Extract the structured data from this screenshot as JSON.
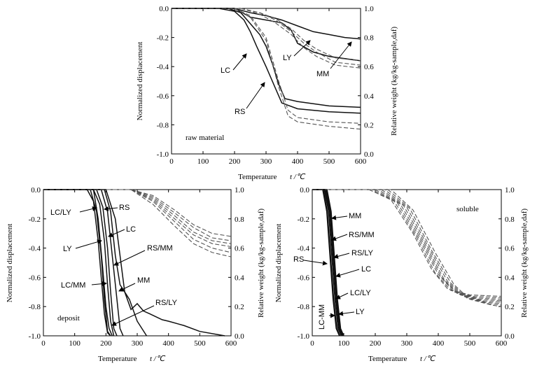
{
  "chart_data": [
    {
      "type": "line",
      "panel_label": "raw material",
      "xlabel": "Temperature",
      "xunit": "t /℃",
      "ylabel_left": "Normalized displacement",
      "ylabel_right": "Relative weight (kg/kg-sample,daf)",
      "xlim": [
        0,
        600
      ],
      "ylim_left": [
        -1.0,
        0.0
      ],
      "ylim_right": [
        0.0,
        1.0
      ],
      "x_ticks": [
        "0",
        "100",
        "200",
        "300",
        "400",
        "500",
        "600"
      ],
      "y_left_ticks": [
        "0.0",
        "-0.2",
        "-0.4",
        "-0.6",
        "-0.8",
        "-1.0"
      ],
      "y_right_ticks": [
        "1.0",
        "0.8",
        "0.6",
        "0.4",
        "0.2",
        "0.0"
      ],
      "series": [
        {
          "name": "LC",
          "style": "solid",
          "x": [
            0,
            150,
            200,
            230,
            250,
            270,
            300,
            330,
            350,
            400,
            500,
            600
          ],
          "y": [
            0,
            0,
            -0.02,
            -0.08,
            -0.16,
            -0.26,
            -0.4,
            -0.55,
            -0.65,
            -0.69,
            -0.71,
            -0.72
          ]
        },
        {
          "name": "RS",
          "style": "solid",
          "x": [
            0,
            180,
            220,
            240,
            260,
            280,
            300,
            320,
            340,
            360,
            400,
            500,
            600
          ],
          "y": [
            0,
            0,
            -0.03,
            -0.08,
            -0.13,
            -0.18,
            -0.26,
            -0.38,
            -0.52,
            -0.62,
            -0.64,
            -0.67,
            -0.68
          ]
        },
        {
          "name": "LY",
          "style": "solid",
          "x": [
            0,
            200,
            250,
            300,
            350,
            380,
            400,
            450,
            500,
            600
          ],
          "y": [
            0,
            0,
            -0.06,
            -0.08,
            -0.1,
            -0.15,
            -0.24,
            -0.3,
            -0.33,
            -0.36
          ]
        },
        {
          "name": "MM",
          "style": "solid",
          "x": [
            0,
            200,
            250,
            300,
            350,
            400,
            450,
            500,
            550,
            600
          ],
          "y": [
            0,
            0,
            -0.03,
            -0.05,
            -0.08,
            -0.12,
            -0.16,
            -0.18,
            -0.2,
            -0.21
          ]
        },
        {
          "name": "",
          "style": "dashed",
          "x": [
            0,
            200,
            250,
            300,
            340,
            370,
            400,
            500,
            600
          ],
          "y": [
            1,
            1,
            0.95,
            0.8,
            0.5,
            0.3,
            0.25,
            0.22,
            0.21
          ]
        },
        {
          "name": "",
          "style": "dashed",
          "x": [
            0,
            200,
            250,
            300,
            340,
            370,
            400,
            500,
            600
          ],
          "y": [
            1,
            1,
            0.94,
            0.78,
            0.46,
            0.26,
            0.22,
            0.19,
            0.17
          ]
        },
        {
          "name": "",
          "style": "dashed",
          "x": [
            0,
            220,
            280,
            330,
            380,
            420,
            460,
            520,
            600
          ],
          "y": [
            1,
            1,
            0.97,
            0.92,
            0.84,
            0.76,
            0.7,
            0.63,
            0.61
          ]
        },
        {
          "name": "",
          "style": "dashed",
          "x": [
            0,
            220,
            280,
            330,
            380,
            420,
            460,
            520,
            600
          ],
          "y": [
            1,
            1,
            0.96,
            0.9,
            0.82,
            0.73,
            0.67,
            0.61,
            0.59
          ]
        },
        {
          "name": "",
          "style": "dashed",
          "x": [
            0,
            220,
            280,
            330,
            380,
            420,
            460,
            520,
            600
          ],
          "y": [
            1,
            1,
            0.97,
            0.93,
            0.86,
            0.78,
            0.72,
            0.66,
            0.64
          ]
        }
      ],
      "annotations": [
        "LC",
        "RS",
        "LY",
        "MM"
      ]
    },
    {
      "type": "line",
      "panel_label": "deposit",
      "xlabel": "Temperature",
      "xunit": "t /℃",
      "ylabel_left": "Normalized displacement",
      "ylabel_right": "Relative weight (kg/kg-sample,daf)",
      "xlim": [
        0,
        600
      ],
      "ylim_left": [
        -1.0,
        0.0
      ],
      "ylim_right": [
        0.0,
        1.0
      ],
      "x_ticks": [
        "0",
        "100",
        "200",
        "300",
        "400",
        "500",
        "600"
      ],
      "y_left_ticks": [
        "0.0",
        "-0.2",
        "-0.4",
        "-0.6",
        "-0.8",
        "-1.0"
      ],
      "y_right_ticks": [
        "1.0",
        "0.8",
        "0.6",
        "0.4",
        "0.2",
        "0.0"
      ],
      "series": [
        {
          "name": "LC/LY",
          "style": "solid",
          "x": [
            0,
            140,
            160,
            175,
            185,
            195,
            205,
            215
          ],
          "y": [
            0,
            0,
            -0.08,
            -0.35,
            -0.6,
            -0.85,
            -0.98,
            -1
          ]
        },
        {
          "name": "RS",
          "style": "solid",
          "x": [
            0,
            160,
            180,
            195,
            205,
            215,
            225
          ],
          "y": [
            0,
            0,
            -0.1,
            -0.35,
            -0.65,
            -0.9,
            -1
          ]
        },
        {
          "name": "LC",
          "style": "solid",
          "x": [
            0,
            170,
            190,
            205,
            215,
            225,
            235
          ],
          "y": [
            0,
            0,
            -0.12,
            -0.4,
            -0.7,
            -0.95,
            -1
          ]
        },
        {
          "name": "LY",
          "style": "solid",
          "x": [
            0,
            150,
            170,
            185,
            195,
            205,
            215
          ],
          "y": [
            0,
            0,
            -0.15,
            -0.45,
            -0.75,
            -0.97,
            -1
          ]
        },
        {
          "name": "RS/MM",
          "style": "solid",
          "x": [
            0,
            185,
            205,
            220,
            235,
            245,
            255
          ],
          "y": [
            0,
            0,
            -0.15,
            -0.45,
            -0.75,
            -0.95,
            -1
          ]
        },
        {
          "name": "MM",
          "style": "solid",
          "x": [
            0,
            195,
            215,
            230,
            245,
            260,
            275,
            300,
            330
          ],
          "y": [
            0,
            0,
            -0.15,
            -0.45,
            -0.65,
            -0.7,
            -0.75,
            -0.9,
            -1
          ]
        },
        {
          "name": "LC/MM",
          "style": "solid",
          "x": [
            0,
            160,
            175,
            190,
            200,
            210,
            220
          ],
          "y": [
            0,
            0,
            -0.2,
            -0.55,
            -0.8,
            -0.95,
            -1
          ]
        },
        {
          "name": "RS/LY",
          "style": "solid",
          "x": [
            0,
            200,
            230,
            260,
            280,
            300,
            320,
            340,
            360,
            380,
            400,
            450,
            500,
            580
          ],
          "y": [
            0,
            0,
            -0.2,
            -0.7,
            -0.82,
            -0.78,
            -0.83,
            -0.85,
            -0.87,
            -0.89,
            -0.9,
            -0.93,
            -0.97,
            -1
          ]
        },
        {
          "name": "",
          "style": "dashed",
          "x": [
            0,
            280,
            350,
            420,
            480,
            540,
            600
          ],
          "y": [
            1,
            1,
            0.96,
            0.86,
            0.76,
            0.7,
            0.68
          ]
        },
        {
          "name": "",
          "style": "dashed",
          "x": [
            0,
            280,
            350,
            420,
            480,
            540,
            600
          ],
          "y": [
            1,
            1,
            0.95,
            0.84,
            0.74,
            0.67,
            0.65
          ]
        },
        {
          "name": "",
          "style": "dashed",
          "x": [
            0,
            280,
            350,
            420,
            480,
            540,
            600
          ],
          "y": [
            1,
            1,
            0.94,
            0.82,
            0.71,
            0.65,
            0.63
          ]
        },
        {
          "name": "",
          "style": "dashed",
          "x": [
            0,
            280,
            350,
            420,
            480,
            540,
            600
          ],
          "y": [
            1,
            1,
            0.93,
            0.8,
            0.69,
            0.63,
            0.61
          ]
        },
        {
          "name": "",
          "style": "dashed",
          "x": [
            0,
            280,
            350,
            420,
            480,
            540,
            600
          ],
          "y": [
            1,
            1,
            0.92,
            0.78,
            0.66,
            0.6,
            0.57
          ]
        },
        {
          "name": "",
          "style": "dashed",
          "x": [
            0,
            280,
            350,
            420,
            480,
            540,
            600
          ],
          "y": [
            1,
            1,
            0.9,
            0.75,
            0.63,
            0.57,
            0.54
          ]
        }
      ],
      "annotations": [
        "LC/LY",
        "RS",
        "LC",
        "LY",
        "RS/MM",
        "LC/MM",
        "MM",
        "RS/LY"
      ]
    },
    {
      "type": "line",
      "panel_label": "soluble",
      "xlabel": "Temperature",
      "xunit": "t /℃",
      "ylabel_left": "Normalized displacement",
      "ylabel_right": "Relative weight (kg/kg-sample,daf)",
      "xlim": [
        0,
        600
      ],
      "ylim_left": [
        -1.0,
        0.0
      ],
      "ylim_right": [
        0.0,
        1.0
      ],
      "x_ticks": [
        "0",
        "100",
        "200",
        "300",
        "400",
        "500",
        "600"
      ],
      "y_left_ticks": [
        "0.0",
        "-0.2",
        "-0.4",
        "-0.6",
        "-0.8",
        "-1.0"
      ],
      "y_right_ticks": [
        "1.0",
        "0.8",
        "0.6",
        "0.4",
        "0.2",
        "0.0"
      ],
      "series": [
        {
          "name": "MM",
          "style": "solid",
          "x": [
            0,
            40,
            55,
            65,
            75,
            85,
            95
          ],
          "y": [
            0,
            0,
            -0.15,
            -0.45,
            -0.75,
            -0.95,
            -1
          ]
        },
        {
          "name": "RS/MM",
          "style": "solid",
          "x": [
            0,
            38,
            52,
            62,
            72,
            82,
            92
          ],
          "y": [
            0,
            0,
            -0.15,
            -0.45,
            -0.75,
            -0.95,
            -1
          ]
        },
        {
          "name": "RS/LY",
          "style": "solid",
          "x": [
            0,
            42,
            56,
            66,
            76,
            86,
            96
          ],
          "y": [
            0,
            0,
            -0.15,
            -0.45,
            -0.75,
            -0.95,
            -1
          ]
        },
        {
          "name": "RS",
          "style": "solid",
          "x": [
            0,
            35,
            48,
            58,
            68,
            78,
            88
          ],
          "y": [
            0,
            0,
            -0.15,
            -0.45,
            -0.75,
            -0.95,
            -1
          ]
        },
        {
          "name": "LC",
          "style": "solid",
          "x": [
            0,
            45,
            58,
            68,
            78,
            88,
            98
          ],
          "y": [
            0,
            0,
            -0.15,
            -0.45,
            -0.75,
            -0.95,
            -1
          ]
        },
        {
          "name": "LC/LY",
          "style": "solid",
          "x": [
            0,
            44,
            57,
            67,
            77,
            87,
            97
          ],
          "y": [
            0,
            0,
            -0.15,
            -0.45,
            -0.75,
            -0.95,
            -1
          ]
        },
        {
          "name": "LY",
          "style": "solid",
          "x": [
            0,
            47,
            60,
            70,
            80,
            90,
            100
          ],
          "y": [
            0,
            0,
            -0.15,
            -0.45,
            -0.75,
            -0.95,
            -1
          ]
        },
        {
          "name": "LC-MM",
          "style": "solid",
          "x": [
            0,
            33,
            46,
            56,
            66,
            76,
            86
          ],
          "y": [
            0,
            0,
            -0.15,
            -0.45,
            -0.75,
            -0.95,
            -1
          ]
        },
        {
          "name": "",
          "style": "dashed",
          "x": [
            0,
            180,
            250,
            320,
            380,
            430,
            500,
            600
          ],
          "y": [
            1,
            1,
            0.93,
            0.7,
            0.45,
            0.32,
            0.28,
            0.27
          ]
        },
        {
          "name": "",
          "style": "dashed",
          "x": [
            0,
            190,
            260,
            330,
            390,
            440,
            510,
            600
          ],
          "y": [
            1,
            1,
            0.92,
            0.68,
            0.43,
            0.31,
            0.27,
            0.26
          ]
        },
        {
          "name": "",
          "style": "dashed",
          "x": [
            0,
            200,
            270,
            340,
            400,
            450,
            520,
            600
          ],
          "y": [
            1,
            1,
            0.91,
            0.66,
            0.42,
            0.3,
            0.26,
            0.25
          ]
        },
        {
          "name": "",
          "style": "dashed",
          "x": [
            0,
            210,
            280,
            350,
            410,
            460,
            530,
            600
          ],
          "y": [
            1,
            1,
            0.9,
            0.64,
            0.4,
            0.29,
            0.25,
            0.24
          ]
        },
        {
          "name": "",
          "style": "dashed",
          "x": [
            0,
            220,
            290,
            360,
            420,
            470,
            540,
            600
          ],
          "y": [
            1,
            1,
            0.89,
            0.62,
            0.38,
            0.28,
            0.24,
            0.23
          ]
        },
        {
          "name": "",
          "style": "dashed",
          "x": [
            0,
            230,
            300,
            370,
            430,
            480,
            550,
            600
          ],
          "y": [
            1,
            1,
            0.88,
            0.6,
            0.37,
            0.27,
            0.23,
            0.22
          ]
        },
        {
          "name": "",
          "style": "dashed",
          "x": [
            0,
            240,
            310,
            380,
            440,
            490,
            560,
            600
          ],
          "y": [
            1,
            1,
            0.87,
            0.58,
            0.36,
            0.26,
            0.22,
            0.21
          ]
        },
        {
          "name": "",
          "style": "dashed",
          "x": [
            0,
            250,
            320,
            390,
            450,
            500,
            570,
            600
          ],
          "y": [
            1,
            1,
            0.86,
            0.57,
            0.35,
            0.25,
            0.21,
            0.2
          ]
        }
      ],
      "annotations": [
        "MM",
        "RS/MM",
        "RS/LY",
        "RS",
        "LC",
        "LC/LY",
        "LY",
        "LC-MM"
      ]
    }
  ]
}
